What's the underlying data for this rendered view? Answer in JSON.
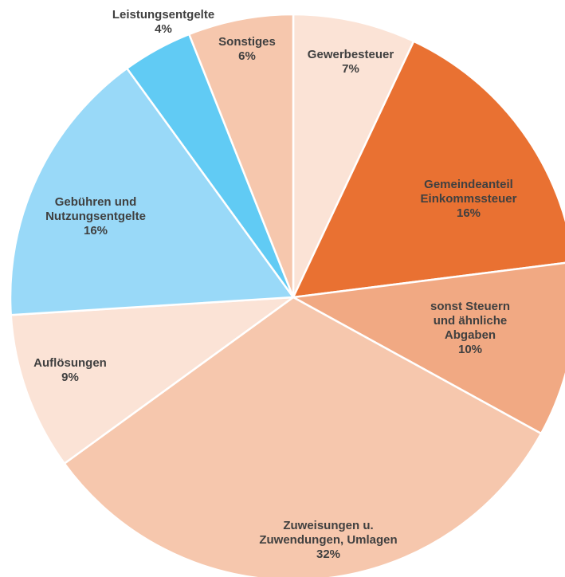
{
  "chart_data": {
    "type": "pie",
    "categories": [
      "Gewerbesteuer",
      "Gemeindeanteil\nEinkommssteuer",
      "sonst Steuern und ähnliche\nAbgaben",
      "Zuweisungen u.\nZuwendungen, Umlagen",
      "Auflösungen",
      "Gebühren und\nNutzungsentgelte",
      "Leistungsentgelte",
      "Sonstiges"
    ],
    "values": [
      7,
      16,
      10,
      32,
      9,
      16,
      4,
      6
    ],
    "value_labels": [
      "7%",
      "16%",
      "10%",
      "32%",
      "9%",
      "16%",
      "4%",
      "6%"
    ],
    "colors": [
      "#fbe3d6",
      "#e97132",
      "#f1a983",
      "#f6c7ad",
      "#fbe3d6",
      "#99d9f8",
      "#61cbf4",
      "#f6c7ad"
    ]
  }
}
